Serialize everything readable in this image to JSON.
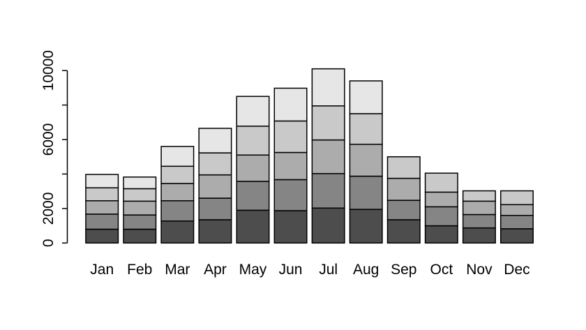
{
  "chart_data": {
    "type": "bar",
    "stacked": true,
    "title": "",
    "xlabel": "",
    "ylabel": "",
    "categories": [
      "Jan",
      "Feb",
      "Mar",
      "Apr",
      "May",
      "Jun",
      "Jul",
      "Aug",
      "Sep",
      "Oct",
      "Nov",
      "Dec"
    ],
    "series": [
      {
        "color": "#4D4D4D",
        "values": [
          800,
          800,
          1275,
          1350,
          1900,
          1875,
          2025,
          1950,
          1350,
          1000,
          875,
          825
        ]
      },
      {
        "color": "#858585",
        "values": [
          875,
          825,
          1175,
          1250,
          1675,
          1800,
          2000,
          1925,
          1125,
          1100,
          775,
          775
        ]
      },
      {
        "color": "#ACACAC",
        "values": [
          775,
          800,
          1000,
          1350,
          1525,
          1575,
          1950,
          1850,
          1275,
          850,
          775,
          625
        ]
      },
      {
        "color": "#C9C9C9",
        "values": [
          750,
          725,
          1000,
          1275,
          1675,
          1825,
          1975,
          1775,
          1250,
          1100,
          600,
          800
        ]
      },
      {
        "color": "#E6E6E6",
        "values": [
          775,
          675,
          1150,
          1425,
          1725,
          1900,
          2150,
          1900,
          0,
          0,
          0,
          0
        ]
      }
    ],
    "totals": [
      3975,
      3825,
      5600,
      6650,
      8500,
      8975,
      10100,
      9400,
      5000,
      4050,
      3025,
      3025
    ],
    "ylim": [
      0,
      10000
    ],
    "y_ticks": [
      {
        "value": 0,
        "label": "0"
      },
      {
        "value": 2000,
        "label": "2000"
      },
      {
        "value": 4000,
        "label": ""
      },
      {
        "value": 6000,
        "label": "6000"
      },
      {
        "value": 8000,
        "label": ""
      },
      {
        "value": 10000,
        "label": "10000"
      }
    ],
    "grid": false,
    "legend": false,
    "bar_border_color": "#000000",
    "axis_color": "#000000",
    "background_color": "#FFFFFF"
  }
}
